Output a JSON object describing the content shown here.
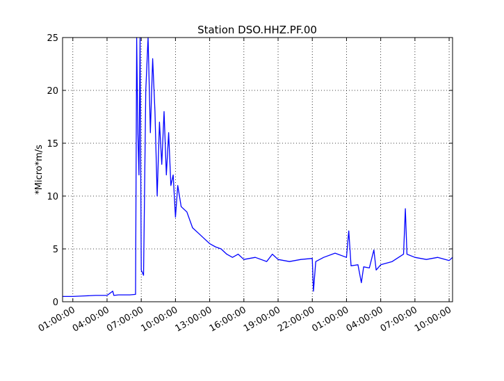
{
  "chart_data": {
    "type": "line",
    "title": "Station DSO.HHZ.PF.00",
    "y_label": "*Micro*m/s",
    "x": [
      0.1,
      1,
      2,
      3,
      4,
      4.5,
      4.6,
      5,
      6,
      6.5,
      6.6,
      6.7,
      6.8,
      6.9,
      7.0,
      7.2,
      7.4,
      7.6,
      7.8,
      8.0,
      8.2,
      8.4,
      8.6,
      8.8,
      9.0,
      9.2,
      9.4,
      9.6,
      9.8,
      10.0,
      10.2,
      10.5,
      11,
      11.5,
      12,
      12.5,
      13,
      13.5,
      14,
      14.5,
      15,
      15.5,
      16,
      17,
      18,
      18.5,
      19,
      20,
      21,
      22,
      22.1,
      22.3,
      23,
      24,
      25,
      25.2,
      25.4,
      26,
      26.3,
      26.5,
      27,
      27.4,
      27.6,
      28,
      29,
      30,
      30.16,
      30.3,
      31,
      32,
      33,
      34,
      34.3
    ],
    "series": [
      {
        "name": "DSO.HHZ.PF.00",
        "color": "#0000ff",
        "values": [
          0.5,
          0.5,
          0.55,
          0.6,
          0.6,
          1.0,
          0.6,
          0.65,
          0.65,
          0.7,
          25,
          16,
          12,
          25,
          3,
          2.5,
          20,
          25,
          16,
          23,
          18,
          10,
          17,
          13,
          18,
          12,
          16,
          11,
          12,
          8,
          11,
          9,
          8.5,
          7,
          6.5,
          6,
          5.5,
          5.2,
          5,
          4.5,
          4.2,
          4.5,
          4,
          4.2,
          3.8,
          4.5,
          4.0,
          3.8,
          4.0,
          4.1,
          1.0,
          3.8,
          4.2,
          4.6,
          4.2,
          6.7,
          3.4,
          3.5,
          1.8,
          3.3,
          3.2,
          4.9,
          3.0,
          3.5,
          3.8,
          4.5,
          8.8,
          4.5,
          4.2,
          4.0,
          4.2,
          3.9,
          4.2
        ]
      }
    ],
    "xlim": [
      0.1,
      34.3
    ],
    "xticks": [
      {
        "value": 1,
        "label": "01:00:00"
      },
      {
        "value": 4,
        "label": "04:00:00"
      },
      {
        "value": 7,
        "label": "07:00:00"
      },
      {
        "value": 10,
        "label": "10:00:00"
      },
      {
        "value": 13,
        "label": "13:00:00"
      },
      {
        "value": 16,
        "label": "16:00:00"
      },
      {
        "value": 19,
        "label": "19:00:00"
      },
      {
        "value": 22,
        "label": "22:00:00"
      },
      {
        "value": 25,
        "label": "01:00:00"
      },
      {
        "value": 28,
        "label": "04:00:00"
      },
      {
        "value": 31,
        "label": "07:00:00"
      },
      {
        "value": 34,
        "label": "10:00:00"
      }
    ],
    "ylim": [
      0,
      25
    ],
    "yticks": [
      0,
      5,
      10,
      15,
      20,
      25
    ],
    "grid": true
  }
}
